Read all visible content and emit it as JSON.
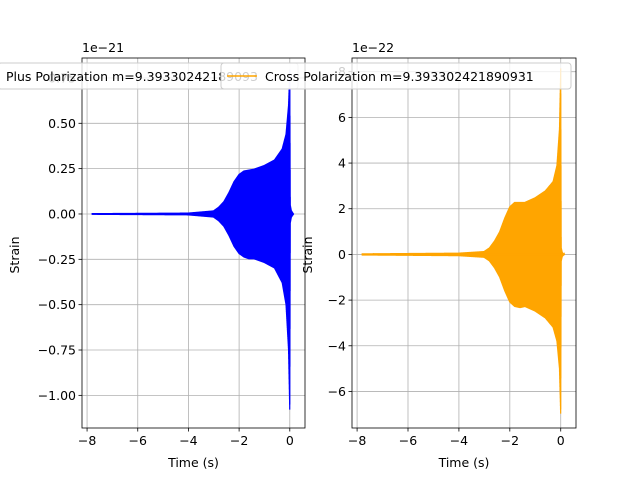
{
  "chart_data": [
    {
      "type": "line",
      "xlabel": "Time (s)",
      "ylabel": "Strain",
      "scale_label": "1e−21",
      "xlim": [
        -8.2,
        0.6
      ],
      "ylim": [
        -1.18,
        0.86
      ],
      "xticks": [
        -8,
        -6,
        -4,
        -2,
        0
      ],
      "xtick_labels": [
        "−8",
        "−6",
        "−4",
        "−2",
        "0"
      ],
      "yticks": [
        -1.0,
        -0.75,
        -0.5,
        -0.25,
        0.0,
        0.25,
        0.5,
        0.75
      ],
      "ytick_labels": [
        "−1.00",
        "−0.75",
        "−0.50",
        "−0.25",
        "0.00",
        "0.25",
        "0.50",
        "0.75"
      ],
      "grid": true,
      "legend_position": "top",
      "series": [
        {
          "name": "Plus Polarization m=9.39330242189093",
          "color": "#0000ff",
          "envelope": {
            "t": [
              -7.8,
              -4.0,
              -3.0,
              -2.8,
              -2.6,
              -2.4,
              -2.2,
              -2.0,
              -1.8,
              -1.6,
              -1.4,
              -1.0,
              -0.6,
              -0.3,
              -0.15,
              -0.05,
              0.0,
              0.02,
              0.06,
              0.15
            ],
            "upper": [
              0.005,
              0.008,
              0.02,
              0.04,
              0.07,
              0.12,
              0.18,
              0.22,
              0.24,
              0.245,
              0.25,
              0.27,
              0.3,
              0.36,
              0.44,
              0.6,
              0.8,
              0.05,
              0.02,
              0.0
            ],
            "lower": [
              -0.005,
              -0.008,
              -0.02,
              -0.04,
              -0.07,
              -0.12,
              -0.18,
              -0.22,
              -0.24,
              -0.25,
              -0.25,
              -0.27,
              -0.3,
              -0.38,
              -0.5,
              -0.75,
              -1.1,
              -0.05,
              -0.02,
              0.0
            ]
          }
        }
      ]
    },
    {
      "type": "line",
      "xlabel": "Time (s)",
      "ylabel": "Strain",
      "scale_label": "1e−22",
      "xlim": [
        -8.2,
        0.6
      ],
      "ylim": [
        -7.6,
        8.6
      ],
      "xticks": [
        -8,
        -6,
        -4,
        -2,
        0
      ],
      "xtick_labels": [
        "−8",
        "−6",
        "−4",
        "−2",
        "0"
      ],
      "yticks": [
        -6,
        -4,
        -2,
        0,
        2,
        4,
        6,
        8
      ],
      "ytick_labels": [
        "−6",
        "−4",
        "−2",
        "0",
        "2",
        "4",
        "6",
        "8"
      ],
      "grid": true,
      "legend_position": "top",
      "series": [
        {
          "name": "Cross Polarization m=9.393302421890931",
          "color": "#ffa500",
          "envelope": {
            "t": [
              -7.8,
              -4.0,
              -3.0,
              -2.8,
              -2.6,
              -2.4,
              -2.2,
              -2.0,
              -1.8,
              -1.6,
              -1.4,
              -1.0,
              -0.6,
              -0.3,
              -0.15,
              -0.05,
              0.0,
              0.02,
              0.06,
              0.15
            ],
            "upper": [
              0.05,
              0.08,
              0.15,
              0.3,
              0.6,
              1.0,
              1.6,
              2.1,
              2.3,
              2.3,
              2.3,
              2.5,
              2.8,
              3.2,
              3.9,
              5.5,
              8.2,
              0.3,
              0.1,
              0.0
            ],
            "lower": [
              -0.05,
              -0.08,
              -0.15,
              -0.3,
              -0.6,
              -1.0,
              -1.6,
              -2.1,
              -2.3,
              -2.35,
              -2.3,
              -2.5,
              -2.8,
              -3.2,
              -3.8,
              -5.0,
              -7.1,
              -0.3,
              -0.1,
              0.0
            ]
          }
        }
      ]
    }
  ]
}
